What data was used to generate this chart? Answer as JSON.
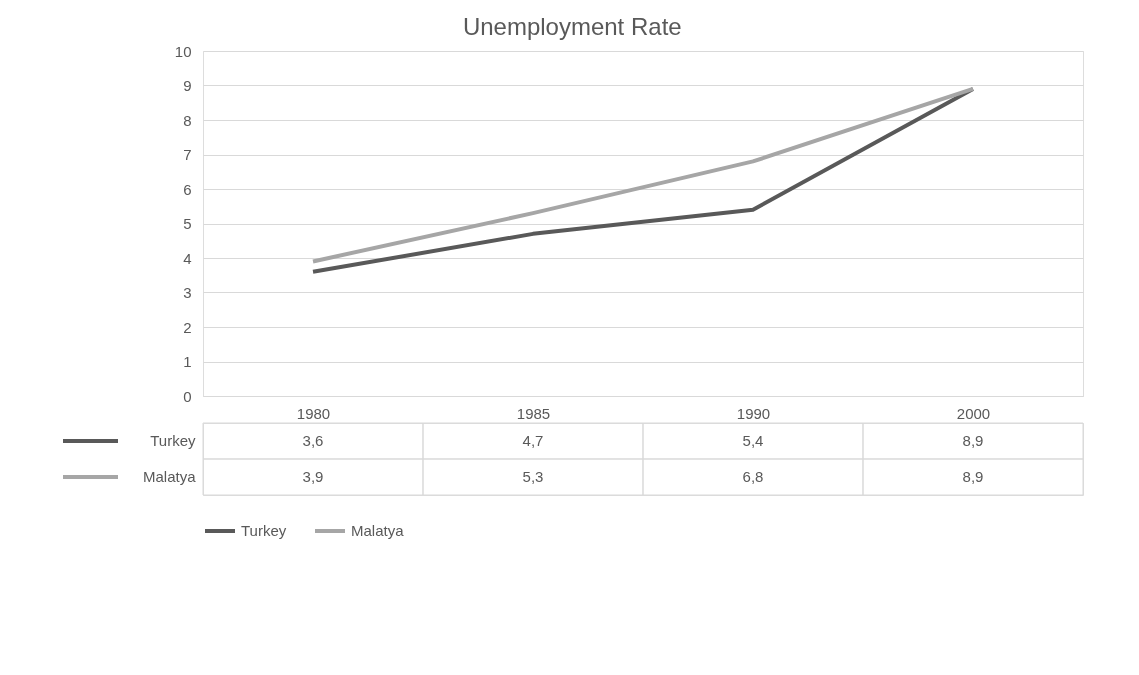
{
  "chart_data": {
    "type": "line",
    "title": "Unemployment Rate",
    "categories": [
      "1980",
      "1985",
      "1990",
      "2000"
    ],
    "series": [
      {
        "name": "Turkey",
        "color": "#595959",
        "values": [
          3.6,
          4.7,
          5.4,
          8.9
        ],
        "value_labels": [
          "3,6",
          "4,7",
          "5,4",
          "8,9"
        ]
      },
      {
        "name": "Malatya",
        "color": "#a6a6a6",
        "values": [
          3.9,
          5.3,
          6.8,
          8.9
        ],
        "value_labels": [
          "3,9",
          "5,3",
          "6,8",
          "8,9"
        ]
      }
    ],
    "ylim": [
      0,
      10
    ],
    "yticks": [
      0,
      1,
      2,
      3,
      4,
      5,
      6,
      7,
      8,
      9,
      10
    ],
    "grid": "y",
    "legend": "bottom",
    "marker": "none",
    "line_style": "solid"
  }
}
